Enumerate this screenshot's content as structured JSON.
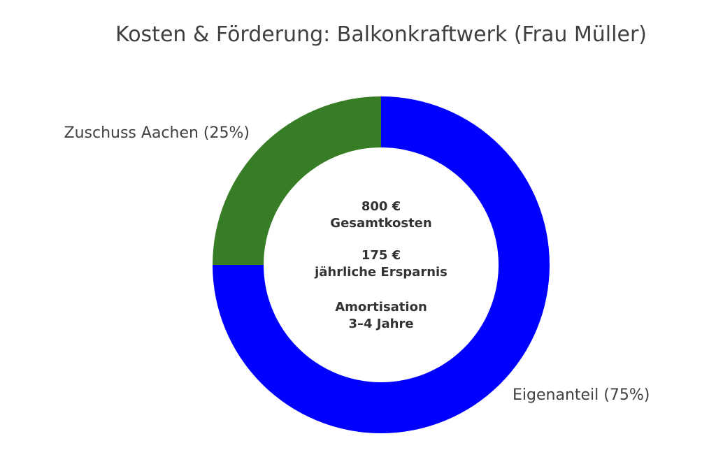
{
  "chart_data": {
    "type": "pie",
    "title": "Kosten & Förderung: Balkonkraftwerk (Frau Müller)",
    "donut": true,
    "slices": [
      {
        "label": "Zuschuss Aachen (25%)",
        "value": 25,
        "color": "#367D25"
      },
      {
        "label": "Eigenanteil (75%)",
        "value": 75,
        "color": "#0000FF"
      }
    ],
    "center_text": {
      "total_value": "800 €",
      "total_label": "Gesamtkosten",
      "savings_value": "175 €",
      "savings_label": "jährliche Ersparnis",
      "amortization_label": "Amortisation",
      "amortization_value": "3–4 Jahre"
    }
  }
}
